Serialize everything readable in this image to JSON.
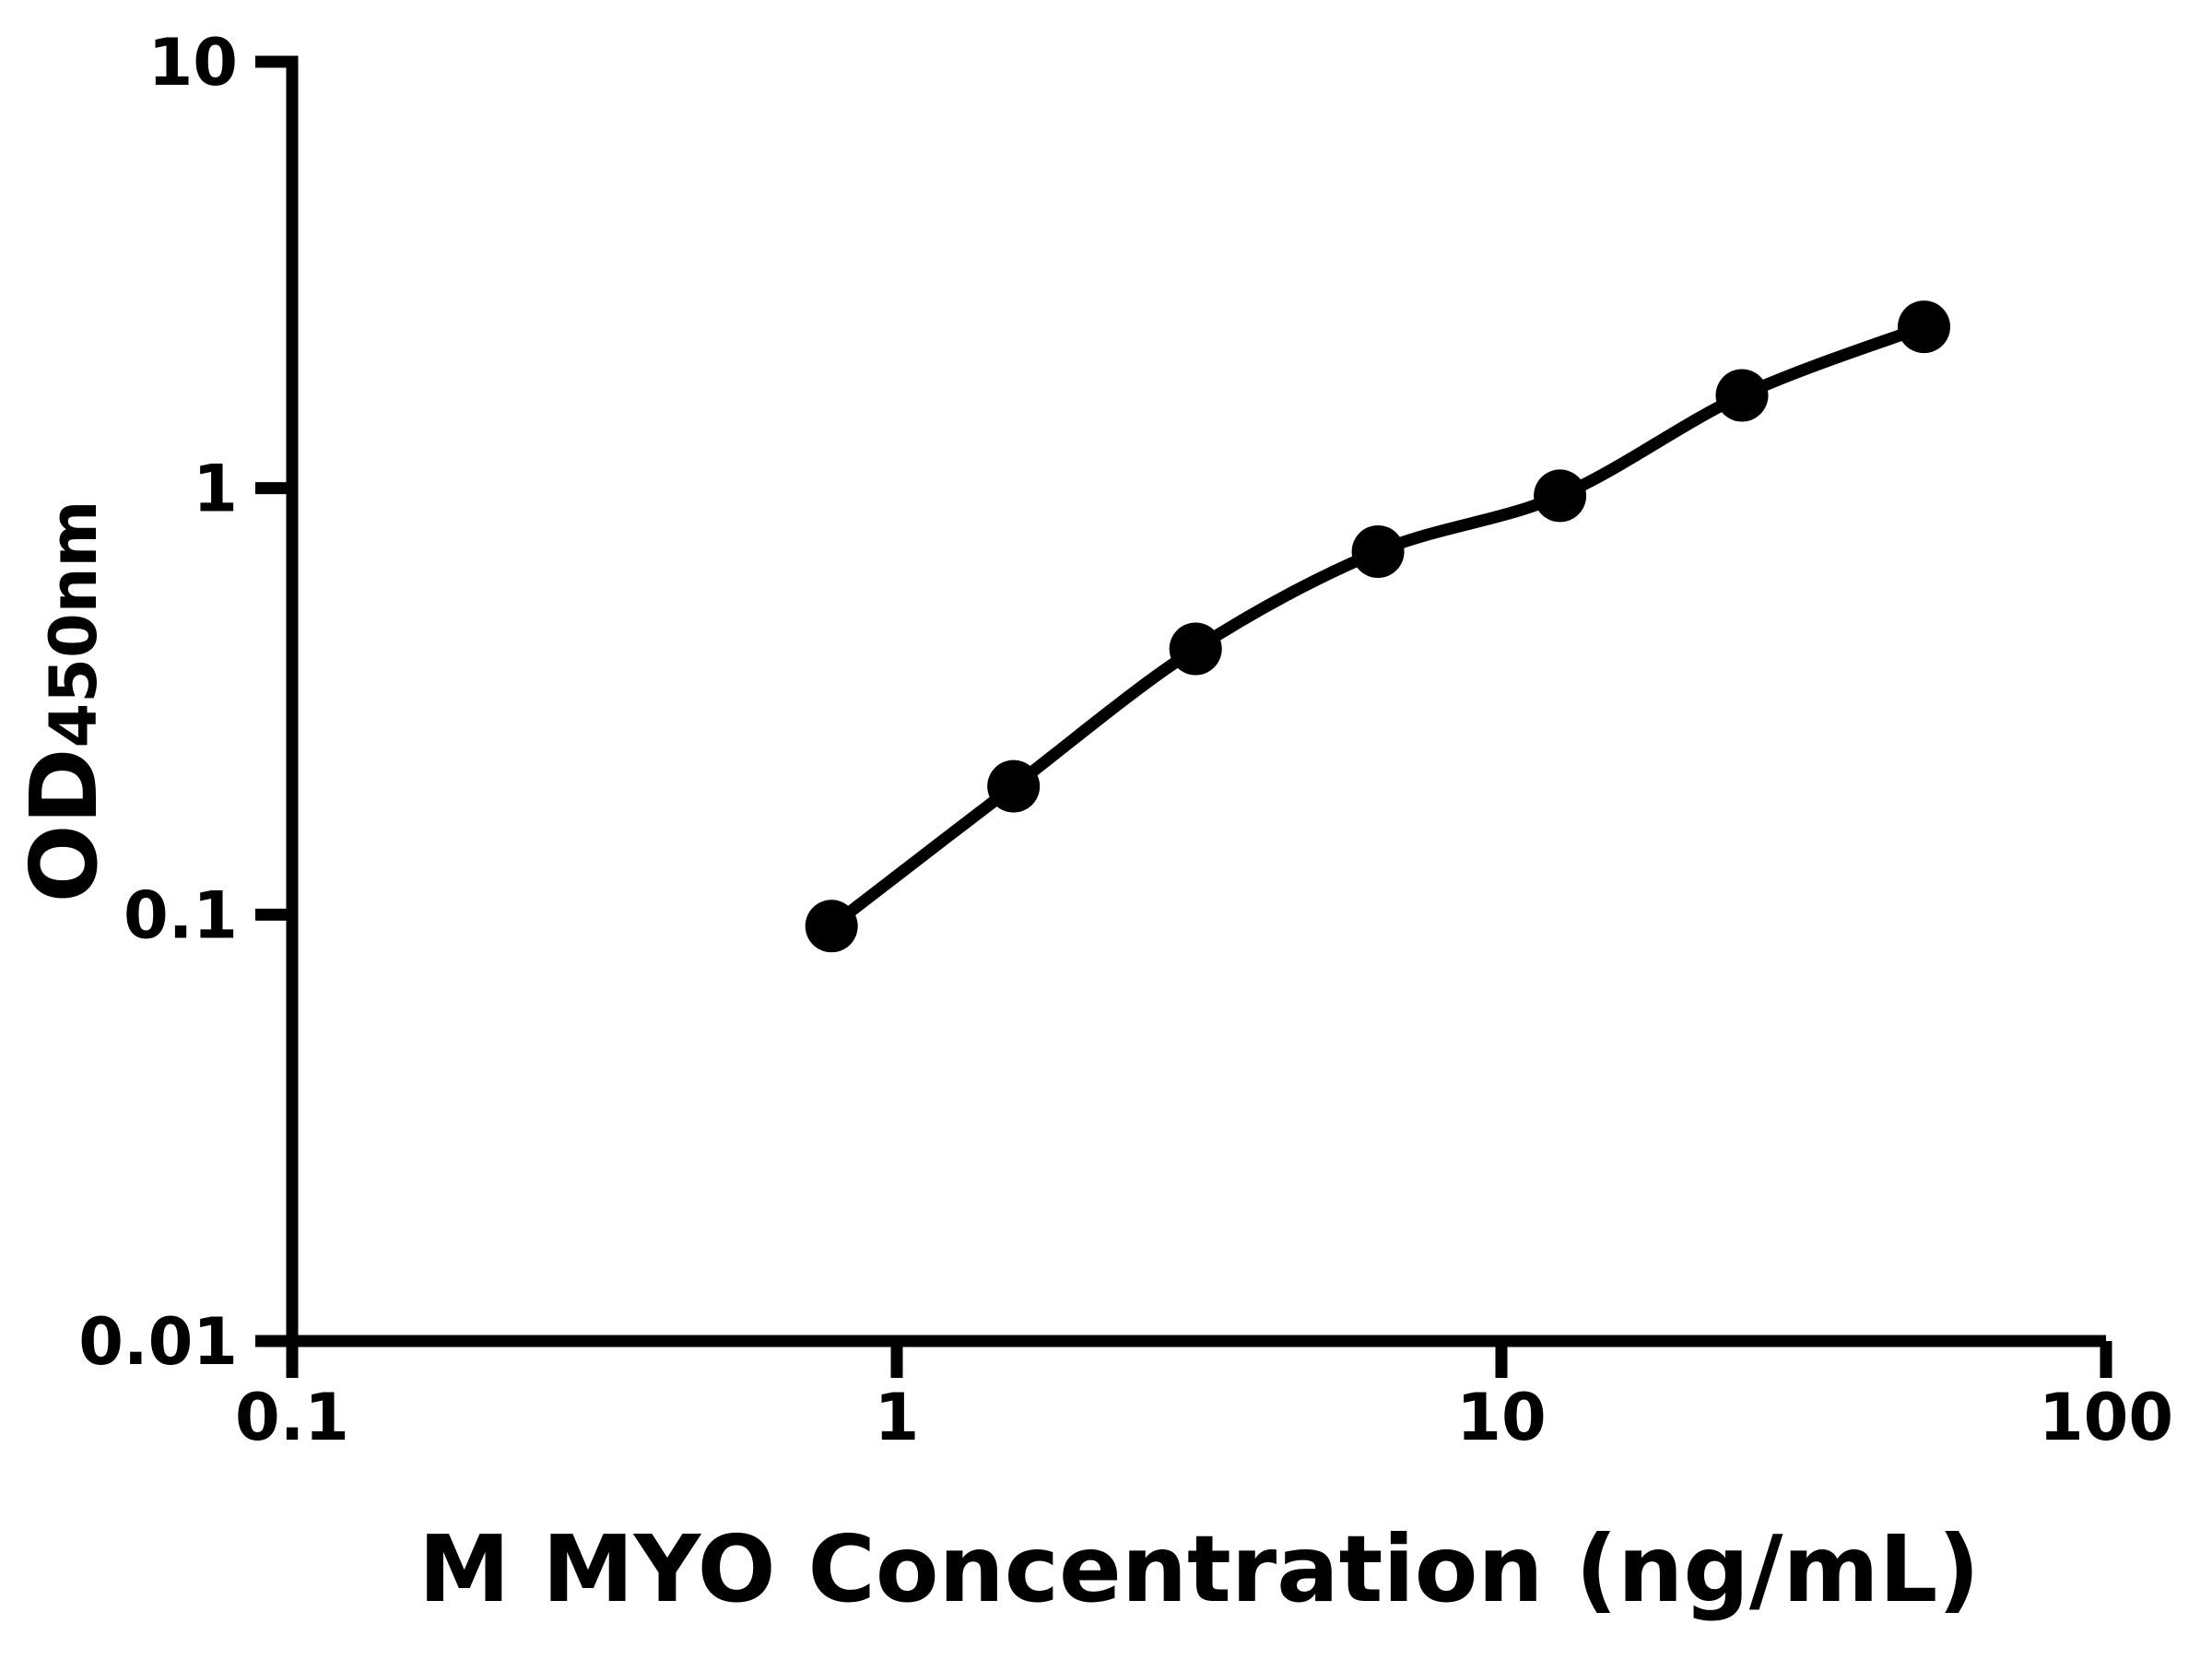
{
  "chart_data": {
    "type": "scatter",
    "title": "",
    "xlabel": "M MYO Concentration (ng/mL)",
    "ylabel": "OD450nm",
    "ylabel_main": "OD",
    "ylabel_sub": "450nm",
    "x_scale": "log",
    "y_scale": "log",
    "xlim": [
      0.1,
      100
    ],
    "ylim": [
      0.01,
      10
    ],
    "x_ticks": [
      0.1,
      1,
      10,
      100
    ],
    "x_tick_labels": [
      "0.1",
      "1",
      "10",
      "100"
    ],
    "y_ticks": [
      10,
      1,
      0.1,
      0.01
    ],
    "y_tick_labels": [
      "10",
      "1",
      "0.1",
      "0.01"
    ],
    "grid": false,
    "legend": "none",
    "background": "#ffffff",
    "axis_color": "#000000",
    "series": [
      {
        "marker": "filled-circle",
        "marker_color": "#000000",
        "line_color": "#000000",
        "fit": "smooth-curve",
        "points": [
          {
            "x": 0.78,
            "y": 0.094
          },
          {
            "x": 1.56,
            "y": 0.2
          },
          {
            "x": 3.12,
            "y": 0.42
          },
          {
            "x": 6.25,
            "y": 0.71
          },
          {
            "x": 12.5,
            "y": 0.96
          },
          {
            "x": 25,
            "y": 1.65
          },
          {
            "x": 50,
            "y": 2.39
          }
        ]
      }
    ]
  }
}
